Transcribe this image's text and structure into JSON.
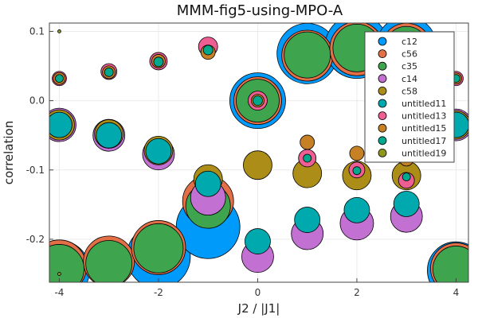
{
  "chart_data": {
    "type": "scatter",
    "title": "MMM-fig5-using-MPO-A",
    "xlabel": "J2 / |J1|",
    "ylabel": "correlation",
    "xlim": [
      -4.2,
      4.25
    ],
    "ylim": [
      -0.262,
      0.112
    ],
    "x_ticks": [
      -4,
      -2,
      0,
      2,
      4
    ],
    "y_ticks": [
      -0.2,
      -0.1,
      0.0,
      0.1
    ],
    "y_tick_labels": [
      "-0.2",
      "-0.1",
      "0.0",
      "0.1"
    ],
    "grid": true,
    "legend_position": "top-right",
    "marker_size_note": "marker area encodes magnitude",
    "series": [
      {
        "name": "c12",
        "color": "#009AFA",
        "points": [
          {
            "x": -4,
            "y": -0.245,
            "s": 38
          },
          {
            "x": -2,
            "y": -0.225,
            "s": 40
          },
          {
            "x": -1,
            "y": -0.182,
            "s": 40
          },
          {
            "x": 0,
            "y": 0.0,
            "s": 35
          },
          {
            "x": 1,
            "y": 0.068,
            "s": 38
          },
          {
            "x": 2,
            "y": 0.078,
            "s": 40
          },
          {
            "x": 3,
            "y": 0.078,
            "s": 38
          },
          {
            "x": 4,
            "y": -0.245,
            "s": 36
          }
        ]
      },
      {
        "name": "c56",
        "color": "#E36F47",
        "points": [
          {
            "x": -4,
            "y": -0.24,
            "s": 34
          },
          {
            "x": -3,
            "y": -0.232,
            "s": 32
          },
          {
            "x": -2,
            "y": -0.212,
            "s": 34
          },
          {
            "x": -1,
            "y": -0.145,
            "s": 32
          },
          {
            "x": 0,
            "y": 0.0,
            "s": 30
          },
          {
            "x": 1,
            "y": 0.065,
            "s": 32
          },
          {
            "x": 2,
            "y": 0.075,
            "s": 34
          },
          {
            "x": 3,
            "y": 0.075,
            "s": 32
          },
          {
            "x": 4,
            "y": -0.242,
            "s": 32
          }
        ]
      },
      {
        "name": "c35",
        "color": "#3EA44E",
        "points": [
          {
            "x": -4,
            "y": -0.243,
            "s": 31
          },
          {
            "x": -3,
            "y": -0.235,
            "s": 29
          },
          {
            "x": -2,
            "y": -0.213,
            "s": 31
          },
          {
            "x": -1,
            "y": -0.152,
            "s": 28
          },
          {
            "x": 0,
            "y": 0.0,
            "s": 27
          },
          {
            "x": 1,
            "y": 0.066,
            "s": 29
          },
          {
            "x": 2,
            "y": 0.076,
            "s": 30
          },
          {
            "x": 3,
            "y": 0.075,
            "s": 28
          },
          {
            "x": 4,
            "y": -0.243,
            "s": 29
          }
        ]
      },
      {
        "name": "c14",
        "color": "#C271D2",
        "points": [
          {
            "x": -4,
            "y": -0.035,
            "s": 21
          },
          {
            "x": -3,
            "y": -0.05,
            "s": 20
          },
          {
            "x": -2,
            "y": -0.077,
            "s": 20
          },
          {
            "x": -1,
            "y": -0.14,
            "s": 22
          },
          {
            "x": 0,
            "y": -0.225,
            "s": 20
          },
          {
            "x": 1,
            "y": -0.192,
            "s": 20
          },
          {
            "x": 2,
            "y": -0.177,
            "s": 21
          },
          {
            "x": 3,
            "y": -0.167,
            "s": 20
          },
          {
            "x": 4,
            "y": -0.035,
            "s": 20
          }
        ]
      },
      {
        "name": "c58",
        "color": "#AC8D18",
        "points": [
          {
            "x": -4,
            "y": -0.035,
            "s": 19
          },
          {
            "x": -3,
            "y": -0.048,
            "s": 18
          },
          {
            "x": -2,
            "y": -0.072,
            "s": 18
          },
          {
            "x": -1,
            "y": -0.113,
            "s": 18
          },
          {
            "x": 0,
            "y": -0.093,
            "s": 18
          },
          {
            "x": 1,
            "y": -0.105,
            "s": 18
          },
          {
            "x": 2,
            "y": -0.108,
            "s": 18
          },
          {
            "x": 3,
            "y": -0.108,
            "s": 18
          },
          {
            "x": 4,
            "y": -0.035,
            "s": 18
          }
        ]
      },
      {
        "name": "untitled11",
        "color": "#00A9AD",
        "points": [
          {
            "x": -4,
            "y": -0.035,
            "s": 16
          },
          {
            "x": -3,
            "y": -0.05,
            "s": 16
          },
          {
            "x": -2,
            "y": -0.073,
            "s": 16
          },
          {
            "x": -1,
            "y": -0.12,
            "s": 16
          },
          {
            "x": 0,
            "y": -0.203,
            "s": 16
          },
          {
            "x": 1,
            "y": -0.172,
            "s": 16
          },
          {
            "x": 2,
            "y": -0.158,
            "s": 16
          },
          {
            "x": 3,
            "y": -0.149,
            "s": 16
          },
          {
            "x": 4,
            "y": -0.035,
            "s": 16
          }
        ]
      },
      {
        "name": "untitled13",
        "color": "#ED5E93",
        "points": [
          {
            "x": -4,
            "y": 0.032,
            "s": 9
          },
          {
            "x": -3,
            "y": 0.042,
            "s": 10
          },
          {
            "x": -2,
            "y": 0.057,
            "s": 11
          },
          {
            "x": -1,
            "y": 0.078,
            "s": 12
          },
          {
            "x": 0,
            "y": 0.0,
            "s": 12
          },
          {
            "x": 1,
            "y": -0.083,
            "s": 11
          },
          {
            "x": 2,
            "y": -0.1,
            "s": 10
          },
          {
            "x": 3,
            "y": -0.115,
            "s": 10
          },
          {
            "x": 4,
            "y": 0.032,
            "s": 9
          }
        ]
      },
      {
        "name": "untitled15",
        "color": "#C68125",
        "points": [
          {
            "x": -4,
            "y": 0.032,
            "s": 7.5
          },
          {
            "x": -3,
            "y": 0.041,
            "s": 8
          },
          {
            "x": -2,
            "y": 0.057,
            "s": 8.5
          },
          {
            "x": -1,
            "y": 0.07,
            "s": 9
          },
          {
            "x": 0,
            "y": 0.0,
            "s": 8
          },
          {
            "x": 1,
            "y": -0.06,
            "s": 9
          },
          {
            "x": 2,
            "y": -0.076,
            "s": 9
          },
          {
            "x": 3,
            "y": -0.084,
            "s": 9
          },
          {
            "x": 4,
            "y": 0.032,
            "s": 7
          }
        ]
      },
      {
        "name": "untitled17",
        "color": "#00A98D",
        "points": [
          {
            "x": -4,
            "y": 0.032,
            "s": 5
          },
          {
            "x": -3,
            "y": 0.041,
            "s": 5.5
          },
          {
            "x": -2,
            "y": 0.056,
            "s": 6
          },
          {
            "x": -1,
            "y": 0.073,
            "s": 6
          },
          {
            "x": 0,
            "y": 0.0,
            "s": 6
          },
          {
            "x": 1,
            "y": -0.083,
            "s": 5
          },
          {
            "x": 2,
            "y": -0.101,
            "s": 5
          },
          {
            "x": 3,
            "y": -0.11,
            "s": 5
          },
          {
            "x": 4,
            "y": 0.032,
            "s": 5
          }
        ]
      },
      {
        "name": "untitled19",
        "color": "#8E971D",
        "points": [
          {
            "x": -4,
            "y": 0.1,
            "s": 2
          },
          {
            "x": -4,
            "y": -0.25,
            "s": 2
          }
        ]
      }
    ]
  }
}
